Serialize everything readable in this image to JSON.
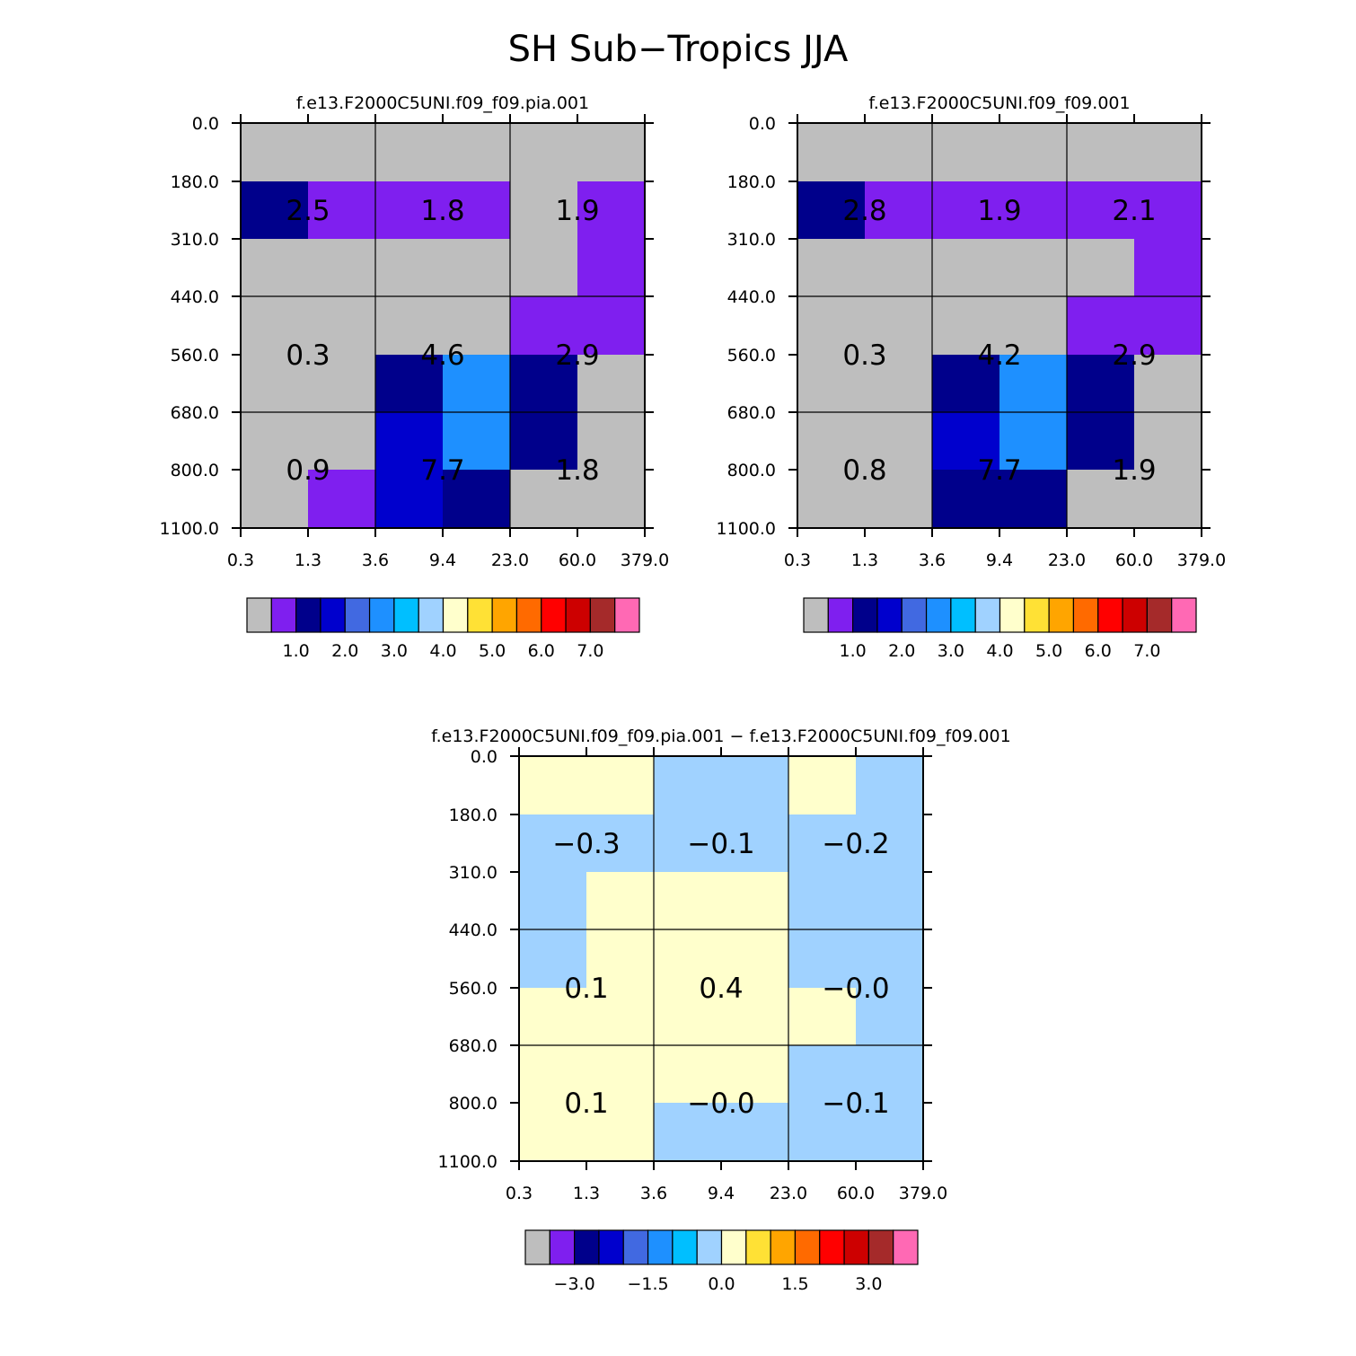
{
  "figure_title": "SH Sub−Tropics JJA",
  "colors": {
    "palette": [
      "#bebebe",
      "#7f1fef",
      "#00008b",
      "#0000cd",
      "#4169e1",
      "#1e90ff",
      "#00bfff",
      "#a0d2ff",
      "#ffffcc",
      "#ffe135",
      "#ffa500",
      "#ff6a00",
      "#ff0000",
      "#cd0000",
      "#a52a2a",
      "#ff69b4"
    ]
  },
  "chart_data": [
    {
      "type": "heatmap",
      "title": "f.e13.F2000C5UNI.f09_f09.pia.001",
      "x_tick_labels": [
        "0.3",
        "1.3",
        "3.6",
        "9.4",
        "23.0",
        "60.0",
        "379.0"
      ],
      "y_tick_labels": [
        "0.0",
        "180.0",
        "310.0",
        "440.0",
        "560.0",
        "680.0",
        "800.0",
        "1100.0"
      ],
      "cell_color_index": [
        [
          0,
          0,
          0,
          0,
          0,
          0
        ],
        [
          2,
          1,
          1,
          1,
          0,
          1
        ],
        [
          0,
          0,
          0,
          0,
          0,
          1
        ],
        [
          0,
          0,
          0,
          0,
          1,
          1
        ],
        [
          0,
          0,
          2,
          5,
          2,
          0
        ],
        [
          0,
          0,
          3,
          5,
          2,
          0
        ],
        [
          0,
          1,
          3,
          2,
          0,
          0
        ]
      ],
      "boxes": [
        [
          "2.5",
          "1.8",
          "1.9"
        ],
        [
          "0.3",
          "4.6",
          "2.9"
        ],
        [
          "0.9",
          "7.7",
          "1.8"
        ]
      ],
      "colorbar_labels": [
        "1.0",
        "2.0",
        "3.0",
        "4.0",
        "5.0",
        "6.0",
        "7.0"
      ]
    },
    {
      "type": "heatmap",
      "title": "f.e13.F2000C5UNI.f09_f09.001",
      "x_tick_labels": [
        "0.3",
        "1.3",
        "3.6",
        "9.4",
        "23.0",
        "60.0",
        "379.0"
      ],
      "y_tick_labels": [
        "0.0",
        "180.0",
        "310.0",
        "440.0",
        "560.0",
        "680.0",
        "800.0",
        "1100.0"
      ],
      "cell_color_index": [
        [
          0,
          0,
          0,
          0,
          0,
          0
        ],
        [
          2,
          1,
          1,
          1,
          1,
          1
        ],
        [
          0,
          0,
          0,
          0,
          0,
          1
        ],
        [
          0,
          0,
          0,
          0,
          1,
          1
        ],
        [
          0,
          0,
          2,
          5,
          2,
          0
        ],
        [
          0,
          0,
          3,
          5,
          2,
          0
        ],
        [
          0,
          0,
          2,
          2,
          0,
          0
        ]
      ],
      "boxes": [
        [
          "2.8",
          "1.9",
          "2.1"
        ],
        [
          "0.3",
          "4.2",
          "2.9"
        ],
        [
          "0.8",
          "7.7",
          "1.9"
        ]
      ],
      "colorbar_labels": [
        "1.0",
        "2.0",
        "3.0",
        "4.0",
        "5.0",
        "6.0",
        "7.0"
      ]
    },
    {
      "type": "heatmap",
      "title": "f.e13.F2000C5UNI.f09_f09.pia.001 − f.e13.F2000C5UNI.f09_f09.001",
      "x_tick_labels": [
        "0.3",
        "1.3",
        "3.6",
        "9.4",
        "23.0",
        "60.0",
        "379.0"
      ],
      "y_tick_labels": [
        "0.0",
        "180.0",
        "310.0",
        "440.0",
        "560.0",
        "680.0",
        "800.0",
        "1100.0"
      ],
      "cell_color_index": [
        [
          8,
          8,
          7,
          7,
          8,
          7
        ],
        [
          7,
          7,
          7,
          7,
          7,
          7
        ],
        [
          7,
          8,
          8,
          8,
          7,
          7
        ],
        [
          7,
          8,
          8,
          8,
          7,
          7
        ],
        [
          8,
          8,
          8,
          8,
          8,
          7
        ],
        [
          8,
          8,
          8,
          8,
          7,
          7
        ],
        [
          8,
          8,
          7,
          7,
          7,
          7
        ]
      ],
      "boxes": [
        [
          "−0.3",
          "−0.1",
          "−0.2"
        ],
        [
          "0.1",
          "0.4",
          "−0.0"
        ],
        [
          "0.1",
          "−0.0",
          "−0.1"
        ]
      ],
      "colorbar_labels": [
        "−3.0",
        "−1.5",
        "0.0",
        "1.5",
        "3.0"
      ]
    }
  ]
}
